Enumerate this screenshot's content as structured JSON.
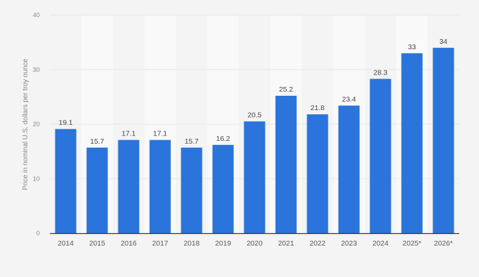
{
  "chart_data": {
    "type": "bar",
    "title": "",
    "xlabel": "",
    "ylabel": "Price in nominal U.S. dollars per troy ounce",
    "ylim": [
      0,
      40
    ],
    "yticks": [
      0,
      10,
      20,
      30,
      40
    ],
    "grid": true,
    "categories": [
      "2014",
      "2015",
      "2016",
      "2017",
      "2018",
      "2019",
      "2020",
      "2021",
      "2022",
      "2023",
      "2024",
      "2025*",
      "2026*"
    ],
    "values": [
      19.1,
      15.7,
      17.1,
      17.1,
      15.7,
      16.2,
      20.5,
      25.2,
      21.8,
      23.4,
      28.3,
      33,
      34
    ],
    "data_labels": [
      "19.1",
      "15.7",
      "17.1",
      "17.1",
      "15.7",
      "16.2",
      "20.5",
      "25.2",
      "21.8",
      "23.4",
      "28.3",
      "33",
      "34"
    ],
    "colors": {
      "bar": "#2a74db",
      "background": "#f4f4f4",
      "band": "#f9f9f9",
      "grid": "#e6e6e6",
      "axis": "#333333"
    }
  }
}
